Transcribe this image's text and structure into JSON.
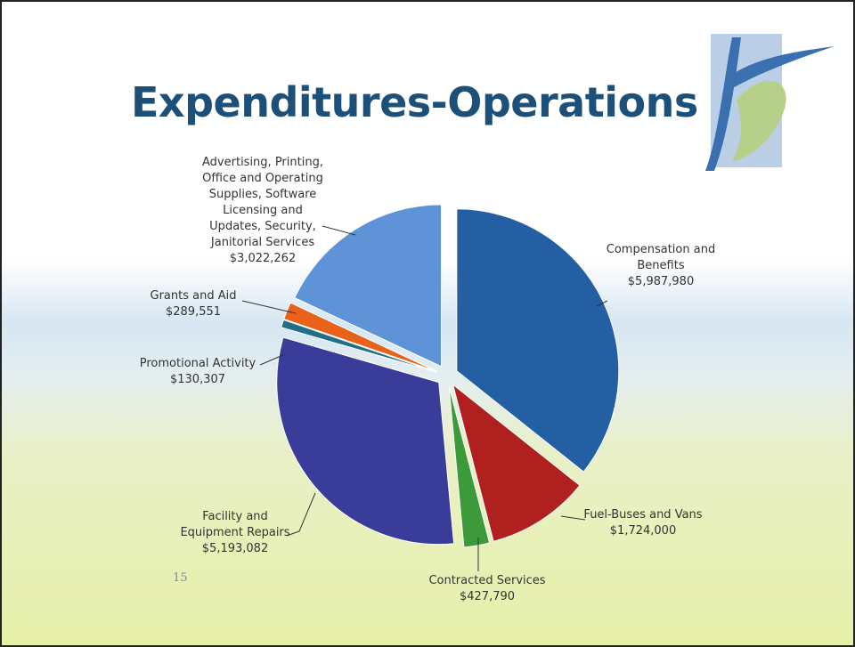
{
  "chart_data": {
    "type": "pie",
    "title": "Expenditures-Operations",
    "categories": [
      "Compensation and Benefits",
      "Fuel-Buses and Vans",
      "Contracted Services",
      "Facility and Equipment Repairs",
      "Promotional Activity",
      "Grants and Aid",
      "Advertising, Printing, Office and Operating Supplies, Software Licensing and Updates, Security, Janitorial Services"
    ],
    "values": [
      5987980,
      1724000,
      427790,
      5193082,
      130307,
      289551,
      3022262
    ],
    "value_labels": [
      "$5,987,980",
      "$1,724,000",
      "$427,790",
      "$5,193,082",
      "$130,307",
      "$289,551",
      "$3,022,262"
    ],
    "colors": [
      "#255fa3",
      "#b0201f",
      "#3c9a3a",
      "#3a3c9a",
      "#1f6e8a",
      "#e8621a",
      "#5e93d8"
    ]
  },
  "page_number": "15"
}
